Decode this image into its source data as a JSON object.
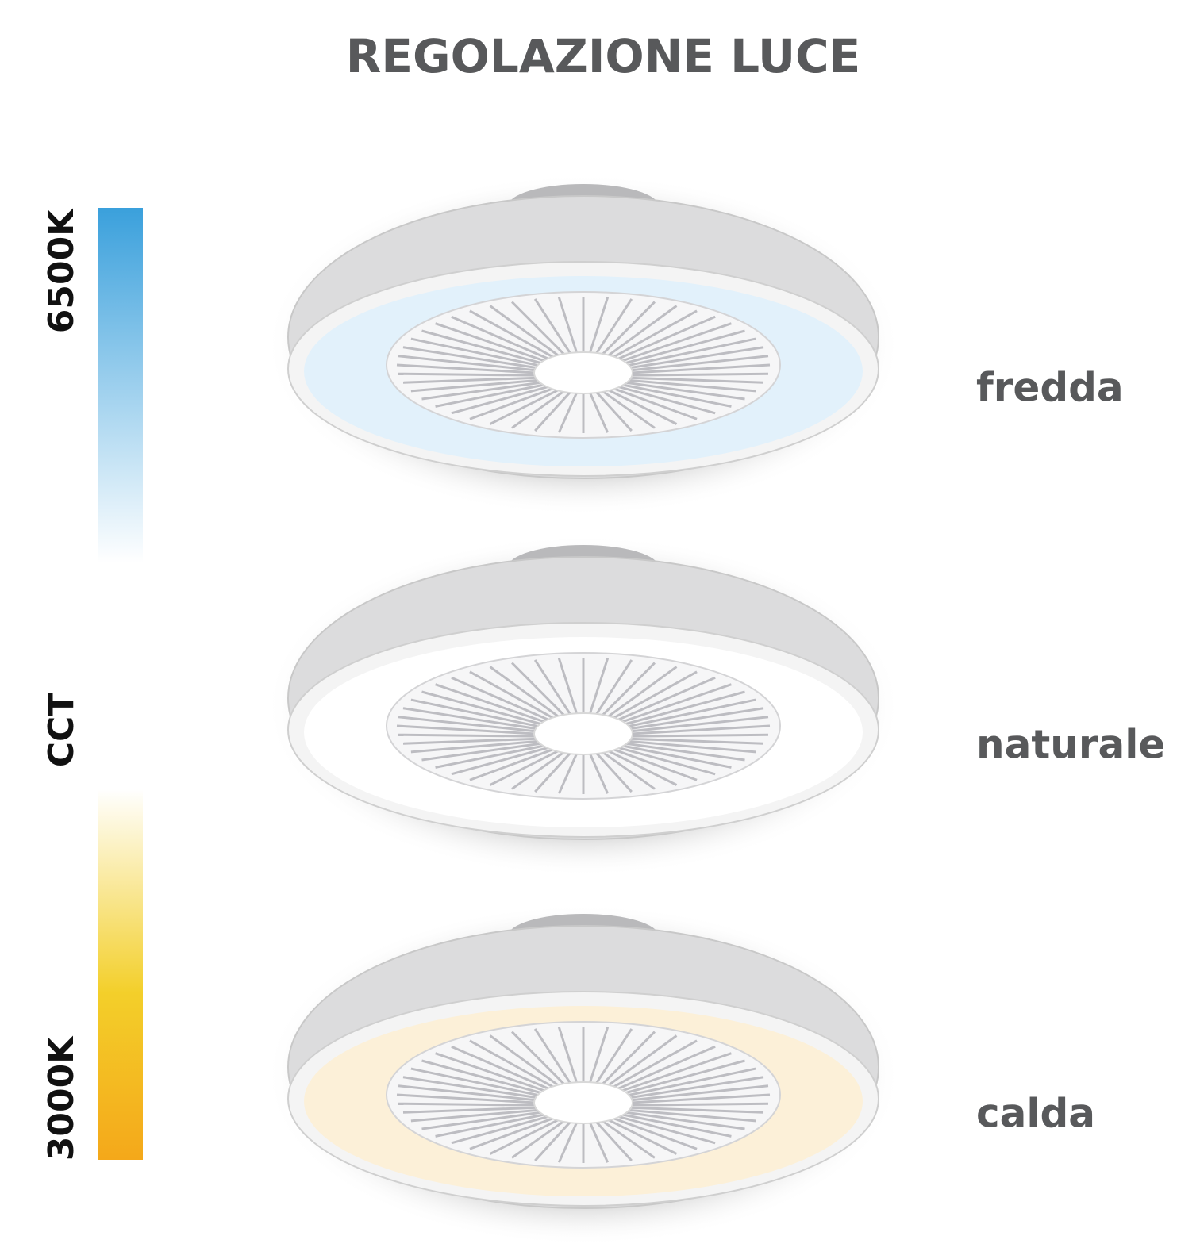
{
  "header": {
    "title": "REGOLAZIONE LUCE"
  },
  "scale": {
    "top": "6500K",
    "middle": "CCT",
    "bottom": "3000K"
  },
  "modes": [
    "fredda",
    "naturale",
    "calda"
  ]
}
